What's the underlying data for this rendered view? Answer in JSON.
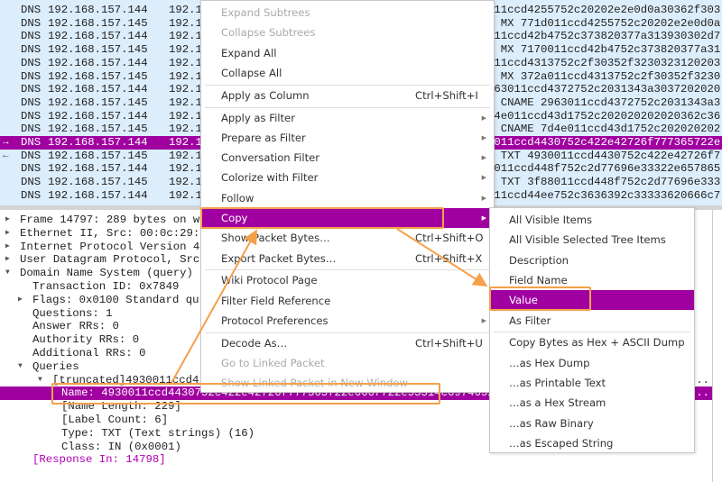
{
  "packet_list": {
    "rows": [
      {
        "proto": "DNS",
        "src": "192.168.157.144",
        "dst": "192.1",
        "info": "011ccd4255752c20202e2e0d0a30362f303"
      },
      {
        "proto": "DNS",
        "src": "192.168.157.145",
        "dst": "192.1",
        "info": "d MX 771d011ccd4255752c20202e2e0d0a"
      },
      {
        "proto": "DNS",
        "src": "192.168.157.144",
        "dst": "192.1",
        "info": "011ccd42b4752c373820377a313930302d7"
      },
      {
        "proto": "DNS",
        "src": "192.168.157.145",
        "dst": "192.1",
        "info": "b MX 7170011ccd42b4752c373820377a31"
      },
      {
        "proto": "DNS",
        "src": "192.168.157.144",
        "dst": "192.1",
        "info": "011ccd4313752c2f30352f3230323120203"
      },
      {
        "proto": "DNS",
        "src": "192.168.157.145",
        "dst": "192.1",
        "info": "2 MX 372a011ccd4313752c2f30352f3230"
      },
      {
        "proto": "DNS",
        "src": "192.168.157.144",
        "dst": "192.1",
        "info": "963011ccd4372752c2031343a3037202020"
      },
      {
        "proto": "DNS",
        "src": "192.168.157.145",
        "dst": "192.1",
        "info": "a CNAME 2963011ccd4372752c2031343a3"
      },
      {
        "proto": "DNS",
        "src": "192.168.157.144",
        "dst": "192.1",
        "info": "d4e011ccd43d1752c202020202020362c36"
      },
      {
        "proto": "DNS",
        "src": "192.168.157.145",
        "dst": "192.1",
        "info": "c CNAME 7d4e011ccd43d1752c202020202"
      },
      {
        "proto": "DNS",
        "src": "192.168.157.144",
        "dst": "192.1",
        "info": "0011ccd4430752c422e42726f777365722e",
        "selected": true,
        "mark": "→"
      },
      {
        "proto": "DNS",
        "src": "192.168.157.145",
        "dst": "192.1",
        "info": "9 TXT 4930011ccd4430752c422e42726f7",
        "mark": "←"
      },
      {
        "proto": "DNS",
        "src": "192.168.157.144",
        "dst": "192.1",
        "info": "8011ccd448f752c2d77696e33322e657865"
      },
      {
        "proto": "DNS",
        "src": "192.168.157.145",
        "dst": "192.1",
        "info": "4 TXT 3f88011ccd448f752c2d77696e333"
      },
      {
        "proto": "DNS",
        "src": "192.168.157.144",
        "dst": "192.1",
        "info": "011ccd44ee752c3636392c33333620666c7"
      }
    ]
  },
  "details": {
    "rows": [
      {
        "text": "Frame 14797: 289 bytes on w",
        "indent": 0,
        "twisty": "closed"
      },
      {
        "text": "Ethernet II, Src: 00:0c:29:",
        "indent": 0,
        "twisty": "closed"
      },
      {
        "text": "Internet Protocol Version 4",
        "indent": 0,
        "twisty": "closed"
      },
      {
        "text": "User Datagram Protocol, Src",
        "indent": 0,
        "twisty": "closed"
      },
      {
        "text": "Domain Name System (query)",
        "indent": 0,
        "twisty": "open"
      },
      {
        "text": "Transaction ID: 0x7849",
        "indent": 1
      },
      {
        "text": "Flags: 0x0100 Standard qu",
        "indent": 1,
        "twisty": "closed"
      },
      {
        "text": "Questions: 1",
        "indent": 1
      },
      {
        "text": "Answer RRs: 0",
        "indent": 1
      },
      {
        "text": "Authority RRs: 0",
        "indent": 1
      },
      {
        "text": "Additional RRs: 0",
        "indent": 1
      },
      {
        "text": "Queries",
        "indent": 1,
        "twisty": "open"
      },
      {
        "text": "[truncated]4930011ccd4",
        "indent": 2,
        "twisty": "open",
        "tail": "4..."
      },
      {
        "text": "Name: 4930011ccd4430752c422e42726f777365722e666f722e53514c6974652e",
        "indent": 3,
        "selected": true,
        "tail": "d..."
      },
      {
        "text": "[Name Length: 229]",
        "indent": 3
      },
      {
        "text": "[Label Count: 6]",
        "indent": 3
      },
      {
        "text": "Type: TXT (Text strings) (16)",
        "indent": 3
      },
      {
        "text": "Class: IN (0x0001)",
        "indent": 3
      },
      {
        "text": "[Response In: 14798]",
        "indent": 1,
        "link": true
      }
    ]
  },
  "context_menu": {
    "items": [
      {
        "label": "Expand Subtrees",
        "disabled": true
      },
      {
        "label": "Collapse Subtrees",
        "disabled": true
      },
      {
        "label": "Expand All"
      },
      {
        "label": "Collapse All",
        "sep_after": true
      },
      {
        "label": "Apply as Column",
        "shortcut": "Ctrl+Shift+I",
        "sep_after": true
      },
      {
        "label": "Apply as Filter",
        "submenu": true
      },
      {
        "label": "Prepare as Filter",
        "submenu": true
      },
      {
        "label": "Conversation Filter",
        "submenu": true
      },
      {
        "label": "Colorize with Filter",
        "submenu": true
      },
      {
        "label": "Follow",
        "submenu": true
      },
      {
        "label": "Copy",
        "submenu": true,
        "highlighted": true
      },
      {
        "label": "Show Packet Bytes…",
        "shortcut": "Ctrl+Shift+O"
      },
      {
        "label": "Export Packet Bytes…",
        "shortcut": "Ctrl+Shift+X",
        "sep_after": true
      },
      {
        "label": "Wiki Protocol Page"
      },
      {
        "label": "Filter Field Reference"
      },
      {
        "label": "Protocol Preferences",
        "submenu": true,
        "sep_after": true
      },
      {
        "label": "Decode As…",
        "shortcut": "Ctrl+Shift+U"
      },
      {
        "label": "Go to Linked Packet",
        "disabled": true
      },
      {
        "label": "Show Linked Packet in New Window",
        "disabled": true
      }
    ]
  },
  "copy_submenu": {
    "items": [
      {
        "label": "All Visible Items"
      },
      {
        "label": "All Visible Selected Tree Items"
      },
      {
        "label": "Description"
      },
      {
        "label": "Field Name"
      },
      {
        "label": "Value",
        "highlighted": true
      },
      {
        "label": "As Filter",
        "sep_after": true
      },
      {
        "label": "Copy Bytes as Hex + ASCII Dump"
      },
      {
        "label": "…as Hex Dump"
      },
      {
        "label": "…as Printable Text"
      },
      {
        "label": "…as a Hex Stream"
      },
      {
        "label": "…as Raw Binary"
      },
      {
        "label": "…as Escaped String"
      }
    ]
  },
  "colors": {
    "selection": "#a000a0",
    "packet_list_bg": "#dcedfc",
    "annotation": "#f5a04a"
  }
}
